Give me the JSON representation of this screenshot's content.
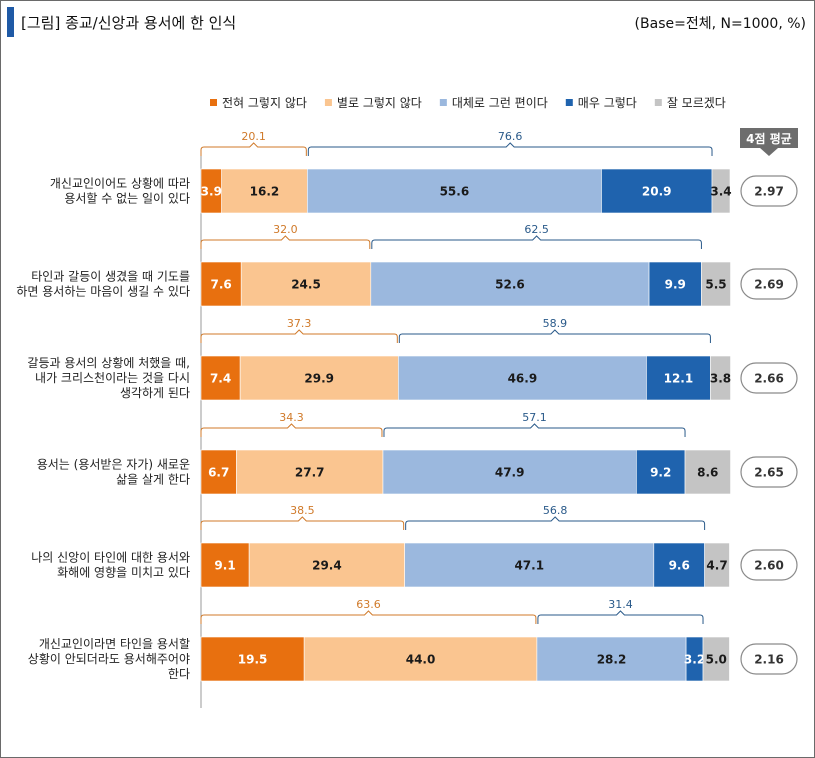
{
  "title": "[그림] 종교/신앙과 용서에 한 인식",
  "base_note": "(Base=전체,  N=1000,  %)",
  "avg_header": "4점 평균",
  "colors": {
    "strongly_disagree": "#e8700f",
    "disagree": "#fac590",
    "agree": "#9bb8de",
    "strongly_agree": "#1f63ae",
    "dont_know": "#c4c4c4",
    "neg_bracket": "#d07a2a",
    "pos_bracket": "#2a5a8a",
    "avg_badge": "#6d6d6d"
  },
  "chart_data": {
    "type": "bar",
    "orientation": "horizontal-stacked",
    "title": "[그림] 종교/신앙과 용서에 한 인식",
    "xlim": [
      0,
      100
    ],
    "legend": [
      "전혀 그렇지 않다",
      "별로 그렇지 않다",
      "대체로 그런 편이다",
      "매우 그렇다",
      "잘 모르겠다"
    ],
    "categories": [
      [
        "개신교인이어도 상황에 따라",
        "용서할 수 없는 일이 있다"
      ],
      [
        "타인과 갈등이 생겼을 때 기도를",
        "하면 용서하는 마음이 생길 수 있다"
      ],
      [
        "갈등과 용서의 상황에 처했을 때,",
        "내가 크리스천이라는 것을 다시",
        "생각하게 된다"
      ],
      [
        "용서는 (용서받은 자가) 새로운",
        "삶을 살게 한다"
      ],
      [
        "나의 신앙이 타인에 대한 용서와",
        "화해에 영향을 미치고 있다"
      ],
      [
        "개신교인이라면 타인을 용서할",
        "상황이 안되더라도 용서해주어야",
        "한다"
      ]
    ],
    "series": [
      {
        "name": "전혀 그렇지 않다",
        "values": [
          3.9,
          7.6,
          7.4,
          6.7,
          9.1,
          19.5
        ]
      },
      {
        "name": "별로 그렇지 않다",
        "values": [
          16.2,
          24.5,
          29.9,
          27.7,
          29.4,
          44.0
        ]
      },
      {
        "name": "대체로 그런 편이다",
        "values": [
          55.6,
          52.6,
          46.9,
          47.9,
          47.1,
          28.2
        ]
      },
      {
        "name": "매우 그렇다",
        "values": [
          20.9,
          9.9,
          12.1,
          9.2,
          9.6,
          3.2
        ]
      },
      {
        "name": "잘 모르겠다",
        "values": [
          3.4,
          5.5,
          3.8,
          8.6,
          4.7,
          5.0
        ]
      }
    ],
    "negative_totals": [
      20.1,
      32.0,
      37.3,
      34.3,
      38.5,
      63.6
    ],
    "positive_totals": [
      76.6,
      62.5,
      58.9,
      57.1,
      56.8,
      31.4
    ],
    "averages": [
      2.97,
      2.69,
      2.66,
      2.65,
      2.6,
      2.16
    ]
  }
}
